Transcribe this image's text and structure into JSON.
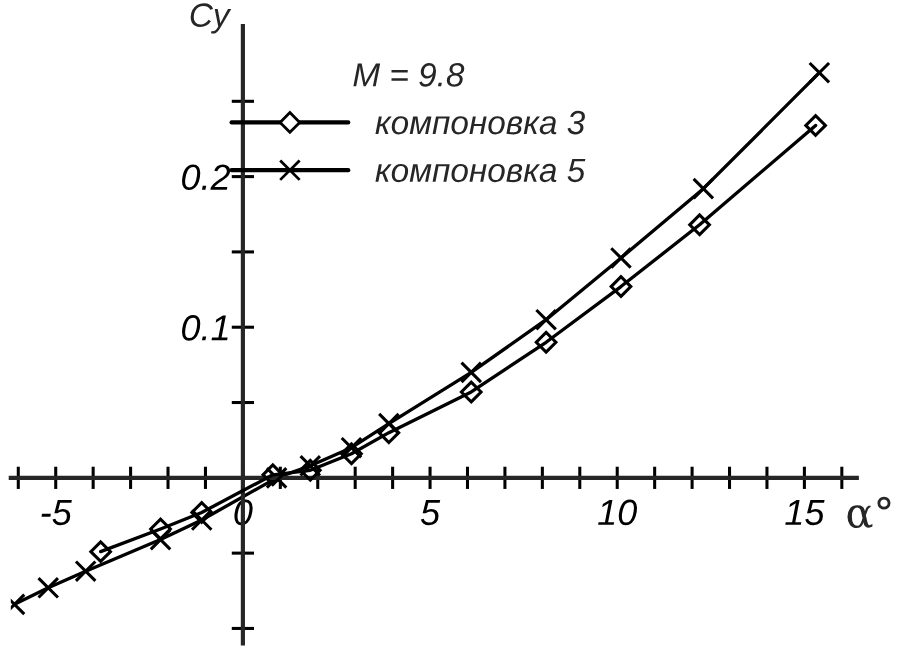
{
  "chart_data": {
    "type": "line",
    "xlabel": "α°",
    "ylabel": "Cy",
    "legend_title": "M = 9.8",
    "legend": "top",
    "xlim": [
      -6.2,
      16.4
    ],
    "ylim": [
      -0.11,
      0.3
    ],
    "xticks": [
      {
        "value": -6,
        "label": null
      },
      -5,
      {
        "value": -4,
        "label": null
      },
      {
        "value": -3,
        "label": null
      },
      {
        "value": -2,
        "label": null
      },
      {
        "value": -1,
        "label": null
      },
      0,
      {
        "value": 1,
        "label": null
      },
      {
        "value": 2,
        "label": null
      },
      {
        "value": 3,
        "label": null
      },
      {
        "value": 4,
        "label": null
      },
      5,
      {
        "value": 6,
        "label": null
      },
      {
        "value": 7,
        "label": null
      },
      {
        "value": 8,
        "label": null
      },
      {
        "value": 9,
        "label": null
      },
      10,
      {
        "value": 11,
        "label": null
      },
      {
        "value": 12,
        "label": null
      },
      {
        "value": 13,
        "label": null
      },
      {
        "value": 14,
        "label": null
      },
      15,
      {
        "value": 16,
        "label": null
      }
    ],
    "yticks": [
      {
        "value": -0.1,
        "label": null
      },
      {
        "value": -0.05,
        "label": null
      },
      {
        "value": 0.05,
        "label": null
      },
      0.1,
      {
        "value": 0.15,
        "label": null
      },
      0.2,
      {
        "value": 0.25,
        "label": null
      }
    ],
    "grid": false,
    "series": [
      {
        "name": "компоновка 3",
        "color": "#000000",
        "marker": "diamond",
        "x": [
          -3.8,
          -2.2,
          -1.1,
          0.8,
          1.8,
          2.9,
          3.9,
          6.1,
          8.1,
          10.1,
          12.2,
          15.3
        ],
        "values": [
          -0.049,
          -0.034,
          -0.023,
          0.002,
          0.005,
          0.016,
          0.03,
          0.057,
          0.09,
          0.127,
          0.168,
          0.234
        ]
      },
      {
        "name": "компоновка 5",
        "color": "#000000",
        "marker": "cross",
        "x": [
          -6.1,
          -5.2,
          -4.2,
          -2.2,
          -1.1,
          0.9,
          1.8,
          2.9,
          3.9,
          6.1,
          8.1,
          10.1,
          12.3,
          15.4
        ],
        "values": [
          -0.084,
          -0.073,
          -0.062,
          -0.041,
          -0.028,
          0.0,
          0.008,
          0.02,
          0.036,
          0.07,
          0.105,
          0.146,
          0.192,
          0.269
        ]
      }
    ]
  }
}
